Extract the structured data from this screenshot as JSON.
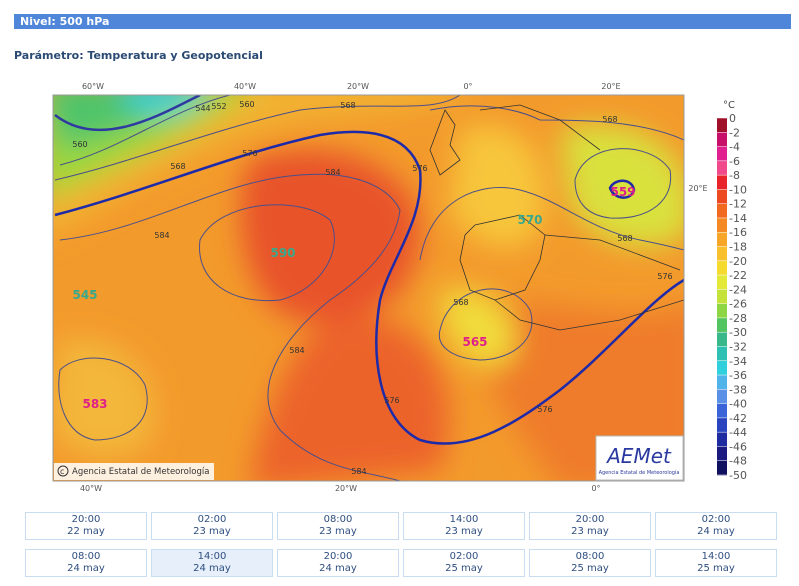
{
  "header": {
    "level": "Nivel: 500 hPa",
    "parameter": "Parámetro: Temperatura y Geopotencial"
  },
  "map": {
    "top_lon": [
      "60°W",
      "40°W",
      "20°W",
      "0°",
      "20°E"
    ],
    "bottom_lon": [
      "40°W",
      "20°W",
      "0°"
    ],
    "right_lon": "20°E",
    "centers": [
      "590",
      "545",
      "583",
      "565",
      "570",
      "559"
    ],
    "contours": [
      "544",
      "552",
      "560",
      "560",
      "568",
      "568",
      "576",
      "576",
      "584",
      "584",
      "584",
      "584",
      "568",
      "568",
      "568",
      "576",
      "576",
      "576"
    ],
    "copyright": "Agencia Estatal de Meteorología",
    "logo": {
      "name": "AEMet",
      "agency": "Agencia Estatal de Meteorología"
    }
  },
  "legend": {
    "unit": "°C",
    "ticks": [
      0,
      -2,
      -4,
      -6,
      -8,
      -10,
      -12,
      -14,
      -16,
      -18,
      -20,
      -22,
      -24,
      -26,
      -28,
      -30,
      -32,
      -34,
      -36,
      -38,
      -40,
      -42,
      -44,
      -46,
      -48,
      -50
    ]
  },
  "times": [
    {
      "time": "20:00",
      "date": "22 may"
    },
    {
      "time": "02:00",
      "date": "23 may"
    },
    {
      "time": "08:00",
      "date": "23 may"
    },
    {
      "time": "14:00",
      "date": "23 may"
    },
    {
      "time": "20:00",
      "date": "23 may"
    },
    {
      "time": "02:00",
      "date": "24 may"
    },
    {
      "time": "08:00",
      "date": "24 may"
    },
    {
      "time": "14:00",
      "date": "24 may"
    },
    {
      "time": "20:00",
      "date": "24 may"
    },
    {
      "time": "02:00",
      "date": "25 may"
    },
    {
      "time": "08:00",
      "date": "25 may"
    },
    {
      "time": "14:00",
      "date": "25 may"
    }
  ],
  "selected_time": 7
}
